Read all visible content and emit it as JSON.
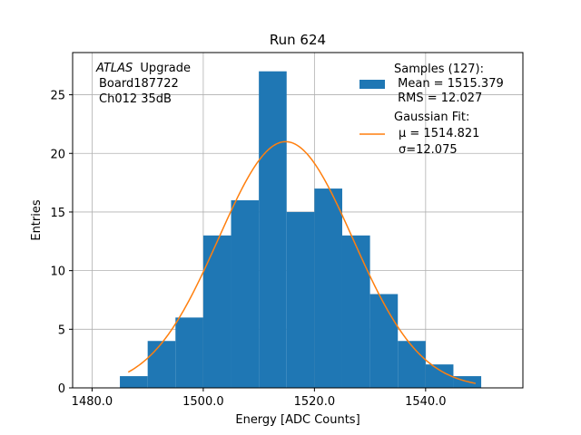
{
  "chart_data": {
    "type": "bar",
    "title": "Run 624",
    "xlabel": "Energy [ADC Counts]",
    "ylabel": "Entries",
    "xlim": [
      1476.5,
      1557.5
    ],
    "ylim": [
      0,
      28.6
    ],
    "grid": true,
    "legend_position": "top-right",
    "bin_width": 5,
    "bins": [
      {
        "x0": 1485,
        "count": 1
      },
      {
        "x0": 1490,
        "count": 4
      },
      {
        "x0": 1495,
        "count": 6
      },
      {
        "x0": 1500,
        "count": 13
      },
      {
        "x0": 1505,
        "count": 16
      },
      {
        "x0": 1510,
        "count": 27
      },
      {
        "x0": 1515,
        "count": 15
      },
      {
        "x0": 1520,
        "count": 17
      },
      {
        "x0": 1525,
        "count": 13
      },
      {
        "x0": 1530,
        "count": 8
      },
      {
        "x0": 1535,
        "count": 4
      },
      {
        "x0": 1540,
        "count": 2
      },
      {
        "x0": 1545,
        "count": 1
      }
    ],
    "fit": {
      "mu": 1514.821,
      "sigma": 12.075,
      "amplitude": 21.0,
      "x_range": [
        1486.5,
        1549
      ]
    },
    "x_ticks": [
      1480,
      1500,
      1520,
      1540
    ],
    "x_tick_labels": [
      "1480.0",
      "1500.0",
      "1520.0",
      "1540.0"
    ],
    "y_ticks": [
      0,
      5,
      10,
      15,
      20,
      25
    ],
    "y_tick_labels": [
      "0",
      "5",
      "10",
      "15",
      "20",
      "25"
    ],
    "info_lines": [
      "Board187722",
      "Ch012 35dB"
    ],
    "info_italic": "ATLAS",
    "info_suffix": "Upgrade",
    "legend": {
      "hist_line1": "Samples (127):",
      "hist_line2": " Mean = 1515.379",
      "hist_line3": " RMS = 12.027",
      "fit_line1": "Gaussian Fit:",
      "fit_line2": "μ = 1514.821",
      "fit_line3": "σ=12.075"
    },
    "colors": {
      "bars": "#1f77b4",
      "fit": "#ff7f0e"
    }
  }
}
